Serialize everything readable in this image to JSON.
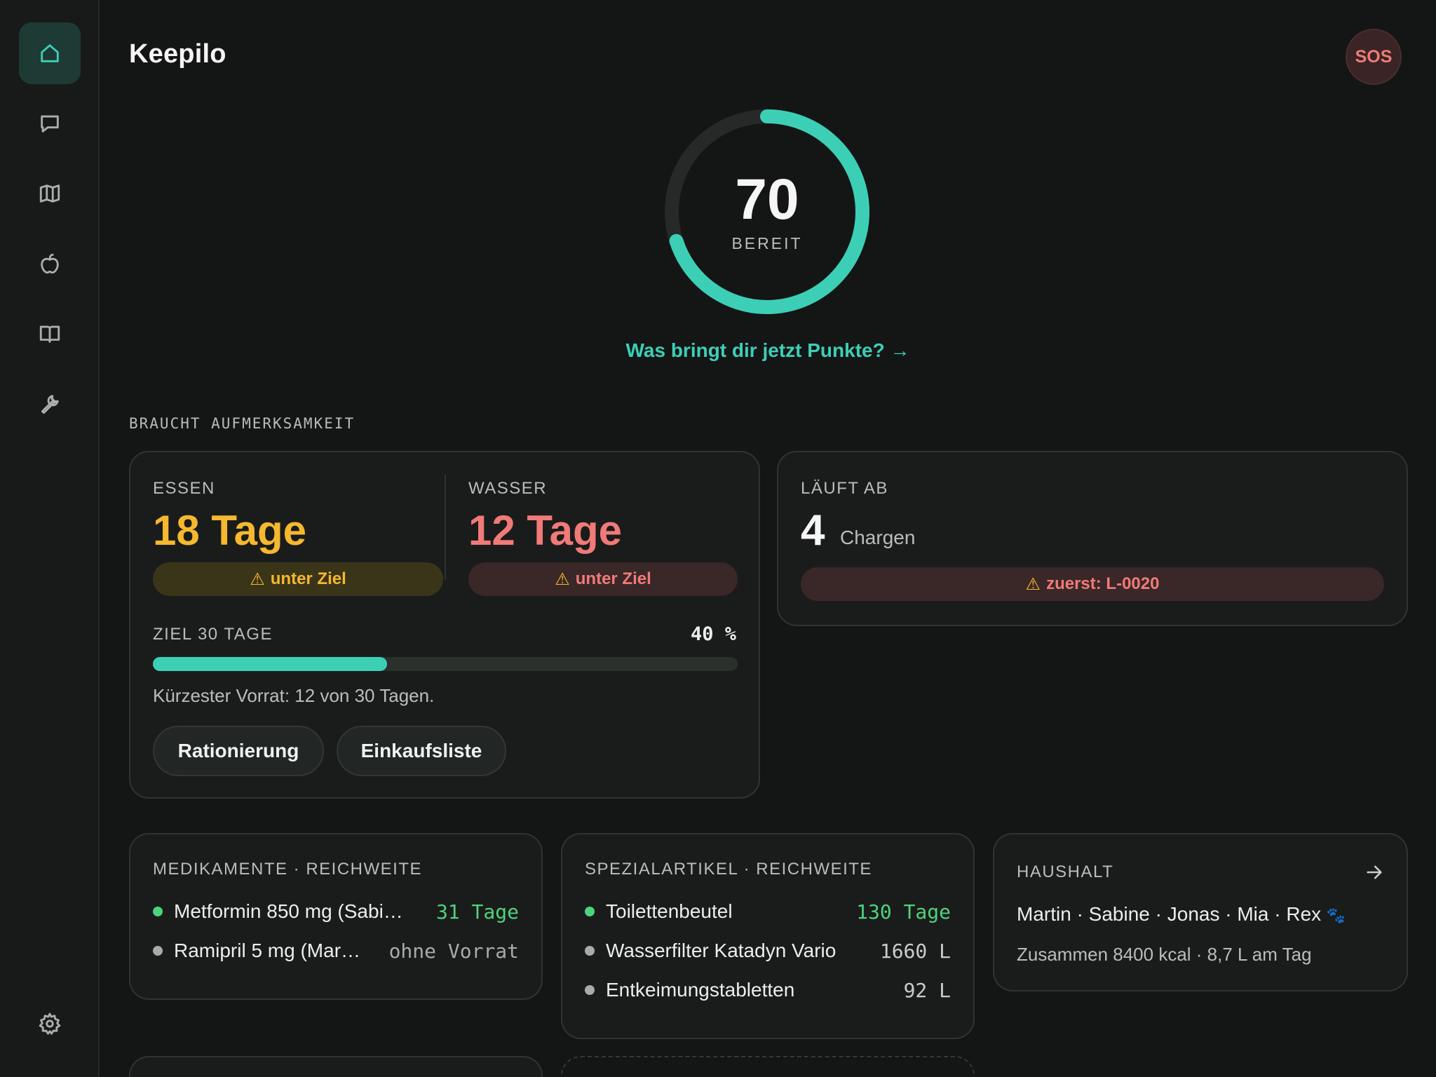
{
  "app": {
    "title": "Keepilo",
    "sos_label": "SOS"
  },
  "sidebar": {
    "items": [
      {
        "name": "home",
        "icon": "home-icon",
        "active": true
      },
      {
        "name": "chat",
        "icon": "chat-icon",
        "active": false
      },
      {
        "name": "map",
        "icon": "map-icon",
        "active": false
      },
      {
        "name": "food",
        "icon": "apple-icon",
        "active": false
      },
      {
        "name": "guide",
        "icon": "book-icon",
        "active": false
      },
      {
        "name": "tools",
        "icon": "wrench-icon",
        "active": false
      },
      {
        "name": "settings",
        "icon": "gear-icon",
        "active": false
      }
    ]
  },
  "score": {
    "value": "70",
    "label": "BEREIT",
    "fraction": 0.7,
    "color": "#3ccfb6",
    "link": "Was bringt dir jetzt Punkte? →"
  },
  "attention": {
    "title": "BRAUCHT AUFMERKSAMKEIT",
    "food": {
      "caption": "ESSEN",
      "days": "18 Tage",
      "badge": "unter Ziel",
      "color": "#f5b82e"
    },
    "water": {
      "caption": "WASSER",
      "days": "12 Tage",
      "badge": "unter Ziel",
      "color": "#f07a78"
    },
    "goal": {
      "caption": "ZIEL 30 TAGE",
      "percent": "40 %",
      "progress": 0.4,
      "note": "Kürzester Vorrat: 12 von 30 Tagen."
    },
    "buttons": {
      "rationing": "Rationierung",
      "shopping": "Einkaufsliste"
    }
  },
  "expiry": {
    "caption": "LÄUFT AB",
    "count": "4",
    "unit": "Chargen",
    "badge": "zuerst: L-0020"
  },
  "meds": {
    "caption": "MEDIKAMENTE · REICHWEITE",
    "items": [
      {
        "name": "Metformin 850 mg (Sabi…",
        "value": "31 Tage",
        "status": "ok"
      },
      {
        "name": "Ramipril 5 mg (Mar…",
        "value": "ohne Vorrat",
        "status": "none"
      }
    ]
  },
  "special": {
    "caption": "SPEZIALARTIKEL · REICHWEITE",
    "items": [
      {
        "name": "Toilettenbeutel",
        "value": "130 Tage",
        "status": "ok"
      },
      {
        "name": "Wasserfilter Katadyn Vario",
        "value": "1660 L",
        "status": "none"
      },
      {
        "name": "Entkeimungstabletten",
        "value": "92 L",
        "status": "none"
      }
    ]
  },
  "household": {
    "caption": "HAUSHALT",
    "members": "Martin · Sabine · Jonas · Mia · Rex",
    "pet_icon": "🐾",
    "summary": "Zusammen 8400 kcal · 8,7 L am Tag"
  },
  "colors": {
    "accent": "#3ccfb6",
    "ok": "#4ed37c",
    "muted": "#a7aca8"
  }
}
